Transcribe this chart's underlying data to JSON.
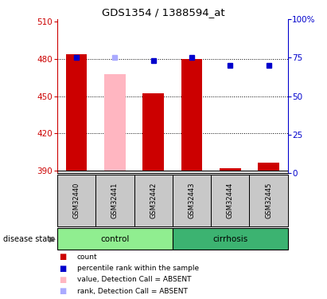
{
  "title": "GDS1354 / 1388594_at",
  "samples": [
    "GSM32440",
    "GSM32441",
    "GSM32442",
    "GSM32443",
    "GSM32444",
    "GSM32445"
  ],
  "groups": [
    {
      "label": "control",
      "indices": [
        0,
        1,
        2
      ],
      "color": "#90EE90"
    },
    {
      "label": "cirrhosis",
      "indices": [
        3,
        4,
        5
      ],
      "color": "#3CB371"
    }
  ],
  "ylim_left": [
    388,
    512
  ],
  "yticks_left": [
    390,
    420,
    450,
    480,
    510
  ],
  "ylim_right": [
    0,
    100
  ],
  "yticks_right": [
    0,
    25,
    50,
    75,
    100
  ],
  "ytick_labels_right": [
    "0",
    "25",
    "50",
    "75",
    "100%"
  ],
  "bar_bottom": 390,
  "red_bars": {
    "values": [
      484,
      468,
      452,
      480,
      392,
      396
    ],
    "color": "#CC0000",
    "absent_color": "#FFB6C1",
    "absent": [
      false,
      true,
      false,
      false,
      false,
      false
    ]
  },
  "blue_squares": {
    "values": [
      75,
      75,
      73,
      75,
      70,
      70
    ],
    "color": "#0000CC",
    "absent_color": "#AAAAFF",
    "absent": [
      false,
      true,
      false,
      false,
      false,
      false
    ]
  },
  "grid_yticks": [
    420,
    450,
    480
  ],
  "sample_panel_bg": "#C8C8C8",
  "axis_left_color": "#CC0000",
  "axis_right_color": "#0000CC",
  "legend_items": [
    {
      "label": "count",
      "color": "#CC0000"
    },
    {
      "label": "percentile rank within the sample",
      "color": "#0000CC"
    },
    {
      "label": "value, Detection Call = ABSENT",
      "color": "#FFB6C1"
    },
    {
      "label": "rank, Detection Call = ABSENT",
      "color": "#AAAAFF"
    }
  ]
}
